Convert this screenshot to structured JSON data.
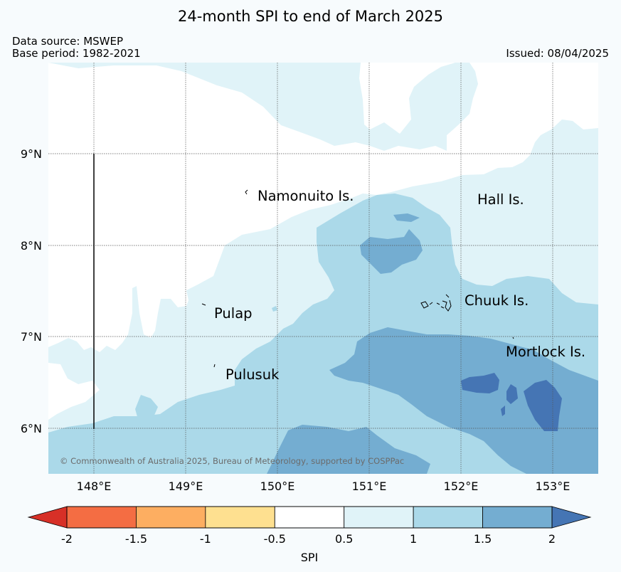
{
  "title": "24-month SPI to end of March 2025",
  "data_source": "Data source: MSWEP",
  "base_period": "Base period: 1982-2021",
  "issued": "Issued: 08/04/2025",
  "copyright": "© Commonwealth of Australia 2025, Bureau of Meteorology, supported by COSPPac",
  "map": {
    "lat_labels": [
      "9°N",
      "8°N",
      "7°N",
      "6°N"
    ],
    "lon_labels": [
      "148°E",
      "149°E",
      "150°E",
      "151°E",
      "152°E",
      "153°E"
    ],
    "places": {
      "namonuito": "Namonuito Is.",
      "hall": "Hall Is.",
      "pulap": "Pulap",
      "chuuk": "Chuuk Is.",
      "mortlock": "Mortlock Is.",
      "pulusuk": "Pulusuk"
    }
  },
  "colorbar": {
    "label": "SPI",
    "ticks": [
      "-2",
      "-1.5",
      "-1",
      "-0.5",
      "0.5",
      "1",
      "1.5",
      "2"
    ],
    "colors": [
      "#d73027",
      "#f46d43",
      "#fdae61",
      "#fee090",
      "#ffffff",
      "#e0f3f8",
      "#abd9e9",
      "#74add1",
      "#4575b4"
    ]
  }
}
